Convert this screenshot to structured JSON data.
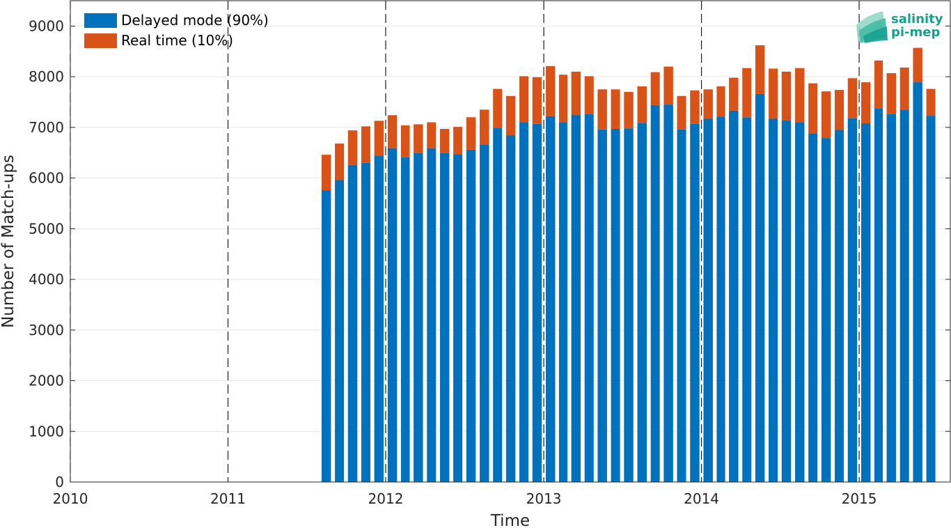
{
  "chart_data": {
    "type": "bar",
    "stacked": true,
    "title": "",
    "xlabel": "Time",
    "ylabel": "Number of Match-ups",
    "xlim": [
      "2010-01-01",
      "2015-07-31"
    ],
    "ylim": [
      0,
      9500
    ],
    "xticks": [
      "2010",
      "2011",
      "2012",
      "2013",
      "2014",
      "2015"
    ],
    "yticks": [
      0,
      1000,
      2000,
      3000,
      4000,
      5000,
      6000,
      7000,
      8000,
      9000
    ],
    "year_markers": [
      "2010",
      "2011",
      "2012",
      "2013",
      "2014",
      "2015"
    ],
    "grid": true,
    "legend": "top-left",
    "categories": [
      "2011-08",
      "2011-09",
      "2011-10",
      "2011-11",
      "2011-12",
      "2012-01",
      "2012-02",
      "2012-03",
      "2012-04",
      "2012-05",
      "2012-06",
      "2012-07",
      "2012-08",
      "2012-09",
      "2012-10",
      "2012-11",
      "2012-12",
      "2013-01",
      "2013-02",
      "2013-03",
      "2013-04",
      "2013-05",
      "2013-06",
      "2013-07",
      "2013-08",
      "2013-09",
      "2013-10",
      "2013-11",
      "2013-12",
      "2014-01",
      "2014-02",
      "2014-03",
      "2014-04",
      "2014-05",
      "2014-06",
      "2014-07",
      "2014-08",
      "2014-09",
      "2014-10",
      "2014-11",
      "2014-12",
      "2015-01",
      "2015-02",
      "2015-03",
      "2015-04",
      "2015-05",
      "2015-06"
    ],
    "series": [
      {
        "name": "Delayed mode (90%)",
        "color": "#0072bd",
        "values": [
          5760,
          5960,
          6260,
          6300,
          6440,
          6590,
          6410,
          6490,
          6590,
          6490,
          6470,
          6560,
          6660,
          6990,
          6840,
          7100,
          7070,
          7220,
          7100,
          7250,
          7260,
          6960,
          6970,
          6980,
          7090,
          7440,
          7450,
          6960,
          7070,
          7170,
          7210,
          7330,
          7200,
          7660,
          7170,
          7140,
          7100,
          6880,
          6790,
          6950,
          7180,
          7080,
          7370,
          7260,
          7350,
          7890,
          7230
        ]
      },
      {
        "name": "Real time (10%)",
        "color": "#d95319",
        "values": [
          700,
          720,
          680,
          720,
          690,
          650,
          630,
          570,
          510,
          480,
          540,
          640,
          690,
          770,
          780,
          910,
          920,
          990,
          940,
          850,
          750,
          790,
          780,
          720,
          720,
          650,
          750,
          660,
          660,
          580,
          600,
          650,
          970,
          960,
          990,
          960,
          1070,
          990,
          920,
          790,
          790,
          810,
          950,
          810,
          830,
          680,
          530
        ]
      }
    ]
  },
  "logo": {
    "line1": "salinity",
    "line2": "pi-mep"
  }
}
